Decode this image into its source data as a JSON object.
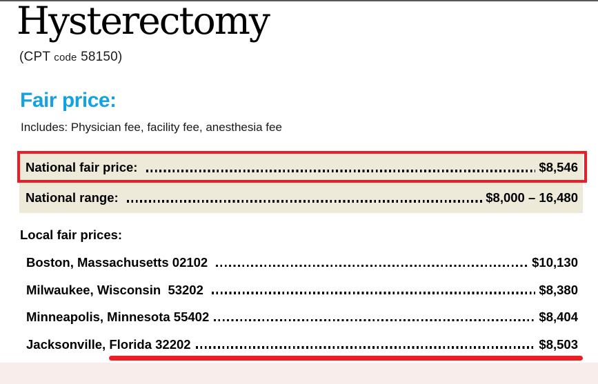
{
  "colors": {
    "accent_blue": "#14A3E0",
    "highlight_red": "#EE1C24",
    "row_beige": "#EEEADA",
    "footer_pink": "#F8EDEB",
    "top_line": "#57575b"
  },
  "header": {
    "title": "Hysterectomy",
    "cpt_prefix": "(CPT ",
    "cpt_code_word": "code",
    "cpt_number": " 58150)"
  },
  "fair_price": {
    "heading": "Fair price:",
    "includes": "Includes: Physician fee, facility fee, anesthesia fee"
  },
  "national_prices": {
    "rows": [
      {
        "label": "National fair price: ",
        "value": "$8,546",
        "highlighted": true
      },
      {
        "label": "National range: ",
        "value": "$8,000 – 16,480",
        "highlighted": false
      }
    ]
  },
  "local_prices": {
    "heading": "Local fair prices:",
    "rows": [
      {
        "label": "Boston, Massachusetts 02102 ",
        "value": "$10,130"
      },
      {
        "label": "Milwaukee, Wisconsin  53202 ",
        "value": "$8,380"
      },
      {
        "label": "Minneapolis, Minnesota 55402",
        "value": "$8,404"
      },
      {
        "label": "Jacksonville, Florida 32202",
        "value": "$8,503"
      }
    ]
  }
}
